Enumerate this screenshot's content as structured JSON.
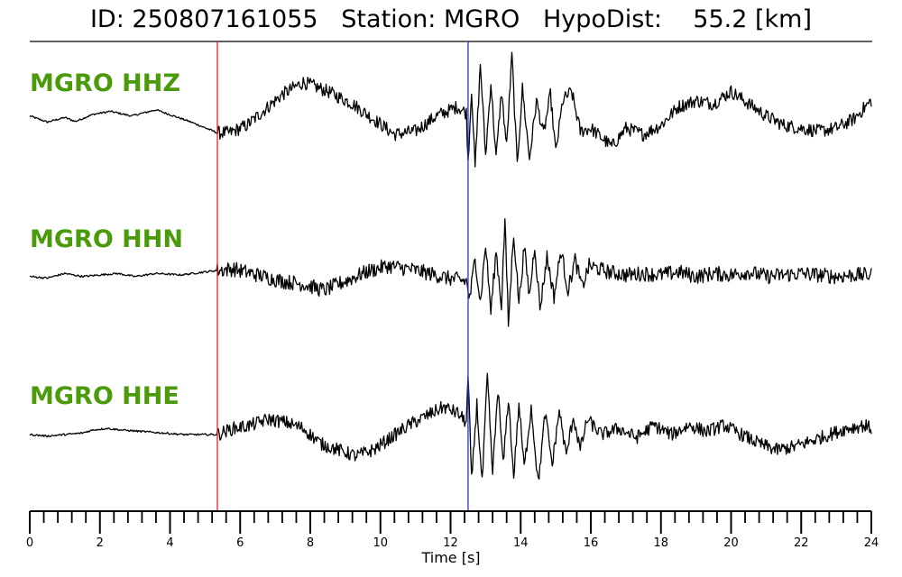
{
  "title": {
    "id_label": "ID:",
    "id_value": "250807161055",
    "station_label": "Station:",
    "station_value": "MGRO",
    "hypodist_label": "HypoDist:",
    "hypodist_value": "55.2",
    "hypodist_unit": "[km]"
  },
  "colors": {
    "trace": "#000000",
    "label": "#4a9a0a",
    "p_pick": "#e8212a",
    "s_pick": "#2a32d6"
  },
  "chart_data": {
    "type": "line",
    "xlabel": "Time [s]",
    "xlim": [
      0,
      24
    ],
    "x_ticks": [
      0,
      2,
      4,
      6,
      8,
      10,
      12,
      14,
      16,
      18,
      20,
      22,
      24
    ],
    "x_minor_step": 0.4,
    "picks": [
      {
        "phase": "P",
        "time": 5.35,
        "color": "#e8212a"
      },
      {
        "phase": "S",
        "time": 12.5,
        "color": "#2a32d6"
      }
    ],
    "series": [
      {
        "name": "MGRO HHZ",
        "noise": 0.22,
        "anchors": [
          [
            0,
            0.1
          ],
          [
            0.5,
            -0.1
          ],
          [
            1.0,
            0.05
          ],
          [
            1.3,
            -0.08
          ],
          [
            1.8,
            0.15
          ],
          [
            2.3,
            0.25
          ],
          [
            2.9,
            0.1
          ],
          [
            3.6,
            0.3
          ],
          [
            4.1,
            0.1
          ],
          [
            4.6,
            -0.1
          ],
          [
            5.35,
            -0.45
          ],
          [
            5.7,
            -0.45
          ],
          [
            6.2,
            -0.2
          ],
          [
            6.7,
            0.3
          ],
          [
            7.2,
            0.8
          ],
          [
            7.8,
            1.2
          ],
          [
            8.5,
            0.9
          ],
          [
            9.2,
            0.5
          ],
          [
            9.8,
            0.0
          ],
          [
            10.4,
            -0.5
          ],
          [
            11.0,
            -0.4
          ],
          [
            11.6,
            0.1
          ],
          [
            12.2,
            0.4
          ],
          [
            12.45,
            0.2
          ]
        ],
        "bursts": [
          [
            12.5,
            -1.4
          ],
          [
            12.6,
            1.0
          ],
          [
            12.7,
            -1.6
          ],
          [
            12.85,
            1.8
          ],
          [
            13.0,
            -1.2
          ],
          [
            13.15,
            1.2
          ],
          [
            13.3,
            -1.3
          ],
          [
            13.45,
            0.9
          ],
          [
            13.6,
            -0.9
          ],
          [
            13.75,
            2.1
          ],
          [
            13.9,
            -1.5
          ],
          [
            14.05,
            1.0
          ],
          [
            14.25,
            -1.3
          ],
          [
            14.45,
            0.6
          ],
          [
            14.65,
            -0.5
          ],
          [
            14.85,
            0.8
          ],
          [
            15.0,
            -1.1
          ],
          [
            15.2,
            0.6
          ],
          [
            15.45,
            0.9
          ],
          [
            15.7,
            -0.4
          ],
          [
            16.0,
            -0.3
          ],
          [
            16.3,
            -0.6
          ],
          [
            16.6,
            -0.9
          ]
        ],
        "tail": [
          [
            16.6,
            -0.9
          ],
          [
            17.0,
            -0.3
          ],
          [
            17.5,
            -0.5
          ],
          [
            18.0,
            -0.2
          ],
          [
            18.5,
            0.4
          ],
          [
            19.0,
            0.6
          ],
          [
            19.5,
            0.5
          ],
          [
            20.0,
            0.9
          ],
          [
            20.5,
            0.5
          ],
          [
            21.0,
            0.1
          ],
          [
            21.5,
            -0.2
          ],
          [
            22.0,
            -0.3
          ],
          [
            22.5,
            -0.4
          ],
          [
            23.0,
            -0.3
          ],
          [
            23.5,
            0.0
          ],
          [
            24.0,
            0.6
          ]
        ]
      },
      {
        "name": "MGRO HHN",
        "noise": 0.25,
        "anchors": [
          [
            0,
            -0.05
          ],
          [
            0.5,
            -0.1
          ],
          [
            1.0,
            0.05
          ],
          [
            1.5,
            -0.05
          ],
          [
            2.0,
            0.0
          ],
          [
            2.5,
            0.05
          ],
          [
            3.0,
            -0.05
          ],
          [
            3.6,
            0.05
          ],
          [
            4.3,
            0.0
          ],
          [
            5.35,
            0.15
          ],
          [
            5.8,
            0.2
          ],
          [
            6.5,
            0.0
          ],
          [
            7.2,
            -0.2
          ],
          [
            7.8,
            -0.3
          ],
          [
            8.4,
            -0.5
          ],
          [
            9.0,
            -0.2
          ],
          [
            9.6,
            0.1
          ],
          [
            10.2,
            0.3
          ],
          [
            10.8,
            0.2
          ],
          [
            11.4,
            0.05
          ],
          [
            11.9,
            -0.1
          ],
          [
            12.45,
            -0.2
          ]
        ],
        "bursts": [
          [
            12.55,
            -0.8
          ],
          [
            12.7,
            0.6
          ],
          [
            12.85,
            -0.9
          ],
          [
            13.0,
            1.0
          ],
          [
            13.15,
            -1.2
          ],
          [
            13.3,
            0.8
          ],
          [
            13.45,
            -1.0
          ],
          [
            13.55,
            1.8
          ],
          [
            13.65,
            -1.6
          ],
          [
            13.8,
            1.4
          ],
          [
            13.95,
            -0.9
          ],
          [
            14.1,
            0.9
          ],
          [
            14.25,
            -0.7
          ],
          [
            14.4,
            1.0
          ],
          [
            14.55,
            -1.1
          ],
          [
            14.75,
            0.6
          ],
          [
            14.95,
            -0.7
          ],
          [
            15.15,
            0.8
          ],
          [
            15.35,
            -0.5
          ],
          [
            15.55,
            0.5
          ],
          [
            15.75,
            -0.4
          ],
          [
            15.95,
            0.3
          ]
        ],
        "tail": [
          [
            15.95,
            0.3
          ],
          [
            16.5,
            0.1
          ],
          [
            17.0,
            0.0
          ],
          [
            17.5,
            0.05
          ],
          [
            18.0,
            0.0
          ],
          [
            18.5,
            0.1
          ],
          [
            19.0,
            -0.05
          ],
          [
            19.5,
            0.05
          ],
          [
            20.0,
            0.0
          ],
          [
            20.5,
            0.1
          ],
          [
            21.0,
            -0.05
          ],
          [
            21.5,
            0.0
          ],
          [
            22.0,
            0.05
          ],
          [
            22.5,
            0.0
          ],
          [
            23.0,
            -0.05
          ],
          [
            23.5,
            0.0
          ],
          [
            24.0,
            0.0
          ]
        ]
      },
      {
        "name": "MGRO HHE",
        "noise": 0.22,
        "anchors": [
          [
            0,
            0.0
          ],
          [
            0.5,
            -0.05
          ],
          [
            1.0,
            0.0
          ],
          [
            1.5,
            0.05
          ],
          [
            1.8,
            0.15
          ],
          [
            2.2,
            0.2
          ],
          [
            2.6,
            0.15
          ],
          [
            3.2,
            0.1
          ],
          [
            3.8,
            0.05
          ],
          [
            4.4,
            0.0
          ],
          [
            5.35,
            0.0
          ],
          [
            5.8,
            0.2
          ],
          [
            6.3,
            0.3
          ],
          [
            6.8,
            0.5
          ],
          [
            7.3,
            0.4
          ],
          [
            7.8,
            0.2
          ],
          [
            8.3,
            -0.3
          ],
          [
            8.8,
            -0.5
          ],
          [
            9.3,
            -0.7
          ],
          [
            9.8,
            -0.5
          ],
          [
            10.3,
            -0.1
          ],
          [
            10.8,
            0.3
          ],
          [
            11.3,
            0.6
          ],
          [
            11.8,
            0.9
          ],
          [
            12.2,
            0.7
          ],
          [
            12.45,
            0.4
          ]
        ],
        "bursts": [
          [
            12.5,
            1.9
          ],
          [
            12.6,
            -1.5
          ],
          [
            12.75,
            1.0
          ],
          [
            12.9,
            -1.6
          ],
          [
            13.05,
            1.9
          ],
          [
            13.2,
            -1.3
          ],
          [
            13.35,
            1.5
          ],
          [
            13.5,
            -1.0
          ],
          [
            13.65,
            1.2
          ],
          [
            13.8,
            -1.4
          ],
          [
            13.95,
            1.0
          ],
          [
            14.1,
            -1.1
          ],
          [
            14.3,
            0.9
          ],
          [
            14.5,
            -1.6
          ],
          [
            14.7,
            0.7
          ],
          [
            14.9,
            -1.0
          ],
          [
            15.1,
            0.8
          ],
          [
            15.3,
            -0.7
          ],
          [
            15.5,
            0.6
          ],
          [
            15.7,
            -0.5
          ],
          [
            15.9,
            0.5
          ]
        ],
        "tail": [
          [
            15.9,
            0.5
          ],
          [
            16.3,
            0.0
          ],
          [
            16.8,
            0.2
          ],
          [
            17.3,
            -0.1
          ],
          [
            17.8,
            0.3
          ],
          [
            18.3,
            0.0
          ],
          [
            18.8,
            0.3
          ],
          [
            19.3,
            0.1
          ],
          [
            19.8,
            0.3
          ],
          [
            20.3,
            0.0
          ],
          [
            20.8,
            -0.3
          ],
          [
            21.3,
            -0.5
          ],
          [
            21.8,
            -0.4
          ],
          [
            22.3,
            -0.2
          ],
          [
            22.8,
            0.0
          ],
          [
            23.3,
            0.2
          ],
          [
            23.8,
            0.3
          ],
          [
            24.0,
            0.2
          ]
        ]
      }
    ]
  }
}
